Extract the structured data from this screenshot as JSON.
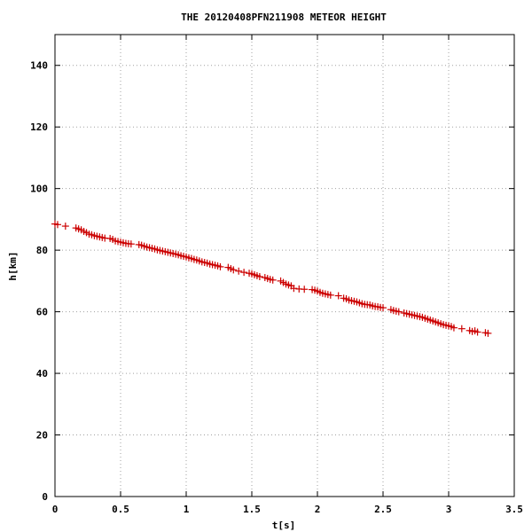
{
  "chart_data": {
    "type": "scatter",
    "title": "THE 20120408PFN211908 METEOR HEIGHT",
    "xlabel": "t[s]",
    "ylabel": "h[km]",
    "xlim": [
      0,
      3.5
    ],
    "ylim": [
      0,
      150
    ],
    "xticks": [
      0,
      0.5,
      1,
      1.5,
      2,
      2.5,
      3,
      3.5
    ],
    "xtick_labels": [
      "0",
      "0.5",
      "1",
      "1.5",
      "2",
      "2.5",
      "3",
      "3.5"
    ],
    "yticks": [
      0,
      20,
      40,
      60,
      80,
      100,
      120,
      140
    ],
    "ytick_labels": [
      "0",
      "20",
      "40",
      "60",
      "80",
      "100",
      "120",
      "140"
    ],
    "grid": true,
    "marker": "plus",
    "color": "#cc0000",
    "series": [
      {
        "x": [
          0.0,
          0.02,
          0.08,
          0.16,
          0.18,
          0.2,
          0.22,
          0.24,
          0.26,
          0.28,
          0.3,
          0.32,
          0.34,
          0.36,
          0.38,
          0.42,
          0.44,
          0.46,
          0.48,
          0.5,
          0.52,
          0.54,
          0.56,
          0.58,
          0.64,
          0.66,
          0.68,
          0.7,
          0.72,
          0.74,
          0.76,
          0.78,
          0.8,
          0.82,
          0.84,
          0.86,
          0.88,
          0.9,
          0.92,
          0.94,
          0.96,
          0.98,
          1.0,
          1.02,
          1.04,
          1.06,
          1.08,
          1.1,
          1.12,
          1.14,
          1.16,
          1.18,
          1.2,
          1.22,
          1.24,
          1.26,
          1.32,
          1.34,
          1.36,
          1.4,
          1.44,
          1.48,
          1.5,
          1.52,
          1.54,
          1.56,
          1.6,
          1.62,
          1.64,
          1.66,
          1.72,
          1.74,
          1.76,
          1.78,
          1.8,
          1.82,
          1.86,
          1.9,
          1.96,
          1.98,
          2.0,
          2.02,
          2.04,
          2.06,
          2.08,
          2.1,
          2.16,
          2.2,
          2.22,
          2.24,
          2.26,
          2.28,
          2.3,
          2.32,
          2.34,
          2.36,
          2.38,
          2.4,
          2.42,
          2.44,
          2.46,
          2.48,
          2.5,
          2.56,
          2.58,
          2.6,
          2.62,
          2.66,
          2.68,
          2.7,
          2.72,
          2.74,
          2.76,
          2.78,
          2.8,
          2.82,
          2.84,
          2.86,
          2.88,
          2.9,
          2.92,
          2.94,
          2.96,
          2.98,
          3.0,
          3.02,
          3.04,
          3.1,
          3.16,
          3.18,
          3.2,
          3.22,
          3.28,
          3.3
        ],
        "y": [
          88.5,
          88.3,
          87.8,
          87.2,
          86.9,
          86.6,
          86.1,
          85.7,
          85.2,
          85.0,
          84.7,
          84.5,
          84.3,
          84.1,
          83.9,
          83.8,
          83.5,
          83.0,
          82.8,
          82.6,
          82.4,
          82.2,
          82.1,
          82.0,
          81.8,
          81.6,
          81.3,
          81.0,
          80.8,
          80.6,
          80.4,
          80.1,
          79.9,
          79.7,
          79.5,
          79.3,
          79.1,
          78.9,
          78.7,
          78.5,
          78.2,
          78.0,
          77.8,
          77.5,
          77.3,
          77.0,
          76.8,
          76.5,
          76.2,
          76.0,
          75.8,
          75.5,
          75.3,
          75.1,
          74.9,
          74.6,
          74.4,
          74.0,
          73.6,
          73.2,
          72.8,
          72.5,
          72.3,
          72.0,
          71.7,
          71.4,
          71.1,
          70.8,
          70.5,
          70.3,
          70.0,
          69.5,
          69.0,
          68.7,
          68.4,
          67.6,
          67.4,
          67.3,
          67.2,
          67.0,
          66.7,
          66.3,
          66.0,
          65.8,
          65.6,
          65.4,
          65.2,
          64.4,
          64.2,
          63.8,
          63.6,
          63.4,
          63.2,
          62.9,
          62.6,
          62.4,
          62.3,
          62.2,
          61.9,
          61.7,
          61.6,
          61.4,
          61.3,
          60.7,
          60.4,
          60.2,
          60.0,
          59.6,
          59.4,
          59.2,
          59.0,
          58.8,
          58.6,
          58.4,
          58.2,
          57.9,
          57.6,
          57.3,
          57.0,
          56.7,
          56.4,
          56.1,
          55.8,
          55.6,
          55.4,
          55.2,
          54.8,
          54.5,
          53.9,
          53.6,
          53.8,
          53.4,
          53.2,
          53.0
        ]
      }
    ]
  }
}
